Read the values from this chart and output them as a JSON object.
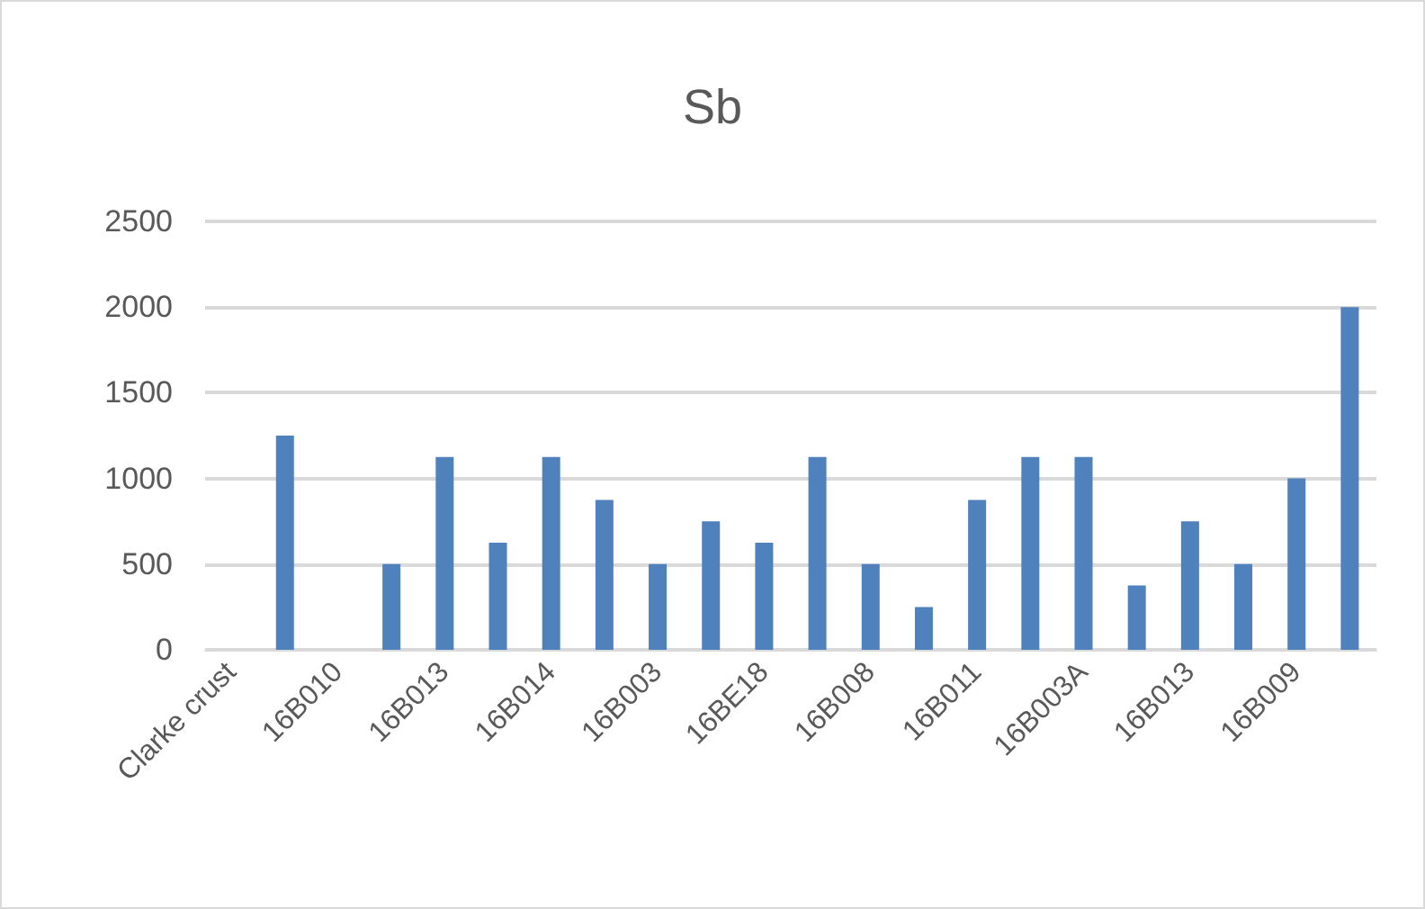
{
  "chart_data": {
    "type": "bar",
    "title": "Sb",
    "categories": [
      "Clarke crust",
      null,
      "16B010",
      null,
      "16B013",
      null,
      "16B014",
      null,
      "16B003",
      null,
      "16BE18",
      null,
      "16B008",
      null,
      "16B011",
      null,
      "16B003A",
      null,
      "16B013",
      null,
      "16B009",
      null
    ],
    "values": [
      null,
      1250,
      null,
      500,
      1125,
      625,
      1125,
      875,
      500,
      750,
      625,
      1125,
      500,
      250,
      875,
      1125,
      1125,
      375,
      750,
      500,
      1000,
      2000
    ],
    "color": "#4f81bd",
    "ylim": [
      0,
      2500
    ],
    "yticks": [
      0,
      500,
      1000,
      1500,
      2000,
      2500
    ],
    "grid": "y"
  }
}
